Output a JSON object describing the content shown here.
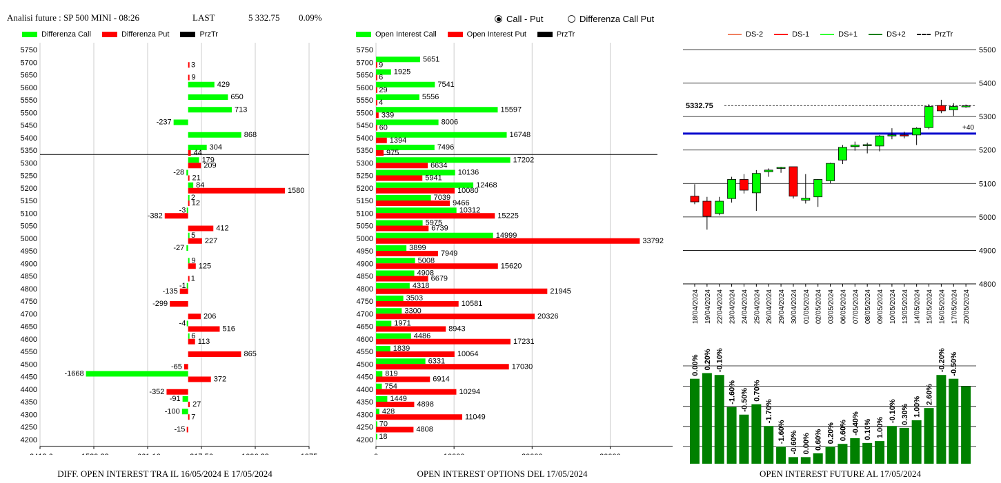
{
  "header": {
    "title": "Analisi future : SP 500 MINI - 08:26",
    "last_label": "LAST",
    "last_value": "5 332.75",
    "last_change": "0.09%"
  },
  "radios": [
    {
      "label": "Call - Put",
      "selected": true
    },
    {
      "label": "Differenza Call Put",
      "selected": false
    }
  ],
  "colors": {
    "green": "#00ff00",
    "red": "#ff0000",
    "black": "#000000",
    "darkgreen": "#008000",
    "blue": "#0000cc"
  },
  "legends": {
    "left": [
      {
        "label": "Differenza Call",
        "color": "#00ff00"
      },
      {
        "label": "Differenza Put",
        "color": "#ff0000"
      },
      {
        "label": "PrzTr",
        "color": "#000000"
      }
    ],
    "mid": [
      {
        "label": "Open Interest Call",
        "color": "#00ff00"
      },
      {
        "label": "Open Interest Put",
        "color": "#ff0000"
      },
      {
        "label": "PrzTr",
        "color": "#000000"
      }
    ],
    "right": [
      {
        "label": "DS-2",
        "color": "#f08060",
        "style": "solid"
      },
      {
        "label": "DS-1",
        "color": "#ff0000",
        "style": "solid"
      },
      {
        "label": "DS+1",
        "color": "#33ff33",
        "style": "solid"
      },
      {
        "label": "DS+2",
        "color": "#008000",
        "style": "solid"
      },
      {
        "label": "PrzTr",
        "color": "#000000",
        "style": "dashed"
      }
    ]
  },
  "captions": {
    "left": "DIFF. OPEN INTEREST TRA IL 16/05/2024 E 17/05/2024",
    "mid": "OPEN INTEREST OPTIONS DEL 17/05/2024",
    "right": "OPEN INTEREST FUTURE AL 17/05/2024"
  },
  "chart_data": [
    {
      "type": "bar",
      "orientation": "horizontal",
      "categories": [
        "5750",
        "5700",
        "5650",
        "5600",
        "5550",
        "5500",
        "5450",
        "5400",
        "5350",
        "5300",
        "5250",
        "5200",
        "5150",
        "5100",
        "5050",
        "5000",
        "4950",
        "4900",
        "4850",
        "4800",
        "4750",
        "4700",
        "4650",
        "4600",
        "4550",
        "4500",
        "4450",
        "4400",
        "4350",
        "4300",
        "4250",
        "4200"
      ],
      "series": [
        {
          "name": "Differenza Call",
          "values": [
            null,
            null,
            null,
            429,
            650,
            713,
            -237,
            868,
            304,
            179,
            -28,
            84,
            2,
            -3,
            null,
            5,
            -27,
            9,
            null,
            -1,
            null,
            null,
            -4,
            6,
            null,
            null,
            -1668,
            null,
            -91,
            -100,
            null,
            null
          ]
        },
        {
          "name": "Differenza Put",
          "values": [
            null,
            3,
            9,
            null,
            null,
            null,
            null,
            null,
            44,
            209,
            21,
            1580,
            12,
            -382,
            412,
            227,
            null,
            125,
            1,
            -135,
            -299,
            206,
            516,
            113,
            865,
            -65,
            372,
            -352,
            27,
            7,
            -15,
            null
          ]
        }
      ],
      "xticks": [
        "-2418.6",
        "-1539.88",
        "-661.16",
        "217.56",
        "1096.28",
        "1975"
      ],
      "xlim": [
        -2418.6,
        1975
      ],
      "reference_price": 5332.75
    },
    {
      "type": "bar",
      "orientation": "horizontal",
      "categories": [
        "5750",
        "5700",
        "5650",
        "5600",
        "5550",
        "5500",
        "5450",
        "5400",
        "5350",
        "5300",
        "5250",
        "5200",
        "5150",
        "5100",
        "5050",
        "5000",
        "4950",
        "4900",
        "4850",
        "4800",
        "4750",
        "4700",
        "4650",
        "4600",
        "4550",
        "4500",
        "4450",
        "4400",
        "4350",
        "4300",
        "4250",
        "4200"
      ],
      "series": [
        {
          "name": "Open Interest Call",
          "values": [
            null,
            5651,
            1925,
            7541,
            5556,
            15597,
            8006,
            16748,
            7496,
            17202,
            10136,
            12468,
            7039,
            10312,
            5975,
            14999,
            3899,
            5008,
            4908,
            4318,
            3503,
            3300,
            1971,
            4486,
            1839,
            6331,
            819,
            754,
            1449,
            428,
            70,
            18
          ]
        },
        {
          "name": "Open Interest Put",
          "values": [
            null,
            9,
            6,
            29,
            4,
            339,
            60,
            1394,
            975,
            6634,
            5941,
            10080,
            9466,
            15225,
            6739,
            33792,
            7949,
            15620,
            6679,
            21945,
            10581,
            20326,
            8943,
            17231,
            10064,
            17030,
            6914,
            10294,
            4898,
            11049,
            4808,
            null
          ]
        }
      ],
      "xticks": [
        "0",
        "10000",
        "20000",
        "30000"
      ],
      "xlim": [
        0,
        38000
      ],
      "reference_price": 5332.75
    },
    {
      "type": "candlestick",
      "dates": [
        "18/04/2024",
        "19/04/2024",
        "22/04/2024",
        "23/04/2024",
        "24/04/2024",
        "25/04/2024",
        "26/04/2024",
        "29/04/2024",
        "30/04/2024",
        "01/05/2024",
        "02/05/2024",
        "03/05/2024",
        "06/05/2024",
        "07/05/2024",
        "08/05/2024",
        "09/05/2024",
        "10/05/2024",
        "13/05/2024",
        "14/05/2024",
        "15/05/2024",
        "16/05/2024",
        "17/05/2024",
        "20/05/2024"
      ],
      "candles": [
        {
          "open": 5062,
          "high": 5098,
          "low": 5038,
          "close": 5045
        },
        {
          "open": 5047,
          "high": 5060,
          "low": 4962,
          "close": 5002
        },
        {
          "open": 5010,
          "high": 5060,
          "low": 5005,
          "close": 5047
        },
        {
          "open": 5055,
          "high": 5120,
          "low": 5043,
          "close": 5112
        },
        {
          "open": 5112,
          "high": 5128,
          "low": 5070,
          "close": 5080
        },
        {
          "open": 5072,
          "high": 5140,
          "low": 5018,
          "close": 5130
        },
        {
          "open": 5135,
          "high": 5145,
          "low": 5120,
          "close": 5140
        },
        {
          "open": 5147,
          "high": 5150,
          "low": 5132,
          "close": 5148
        },
        {
          "open": 5150,
          "high": 5150,
          "low": 5055,
          "close": 5062
        },
        {
          "open": 5050,
          "high": 5128,
          "low": 5040,
          "close": 5056
        },
        {
          "open": 5060,
          "high": 5113,
          "low": 5030,
          "close": 5112
        },
        {
          "open": 5108,
          "high": 5162,
          "low": 5100,
          "close": 5160
        },
        {
          "open": 5170,
          "high": 5215,
          "low": 5158,
          "close": 5208
        },
        {
          "open": 5210,
          "high": 5225,
          "low": 5198,
          "close": 5215
        },
        {
          "open": 5213,
          "high": 5222,
          "low": 5190,
          "close": 5216
        },
        {
          "open": 5212,
          "high": 5245,
          "low": 5196,
          "close": 5242
        },
        {
          "open": 5243,
          "high": 5265,
          "low": 5232,
          "close": 5245
        },
        {
          "open": 5245,
          "high": 5255,
          "low": 5235,
          "close": 5243
        },
        {
          "open": 5245,
          "high": 5268,
          "low": 5215,
          "close": 5265
        },
        {
          "open": 5267,
          "high": 5337,
          "low": 5262,
          "close": 5330
        },
        {
          "open": 5333,
          "high": 5350,
          "low": 5310,
          "close": 5317
        },
        {
          "open": 5320,
          "high": 5340,
          "low": 5302,
          "close": 5330
        },
        {
          "open": 5330,
          "high": 5336,
          "low": 5326,
          "close": 5332
        }
      ],
      "yticks": [
        "5500",
        "5400",
        "5300",
        "5200",
        "5100",
        "5000",
        "4900",
        "4800"
      ],
      "ylim": [
        4800,
        5500
      ],
      "last_price_label": "5332.75",
      "last_price": 5332.75,
      "level_line": 5249,
      "offset_label": "+40"
    },
    {
      "type": "bar",
      "categories": [
        "18/04/2024",
        "19/04/2024",
        "22/04/2024",
        "23/04/2024",
        "24/04/2024",
        "25/04/2024",
        "26/04/2024",
        "29/04/2024",
        "30/04/2024",
        "01/05/2024",
        "02/05/2024",
        "03/05/2024",
        "06/05/2024",
        "07/05/2024",
        "08/05/2024",
        "09/05/2024",
        "10/05/2024",
        "13/05/2024",
        "14/05/2024",
        "15/05/2024",
        "16/05/2024",
        "17/05/2024",
        "20/05/2024"
      ],
      "values": [
        0.9,
        0.96,
        0.94,
        0.6,
        0.52,
        0.63,
        0.4,
        0.18,
        0.07,
        0.07,
        0.11,
        0.18,
        0.21,
        0.27,
        0.22,
        0.24,
        0.4,
        0.38,
        0.46,
        0.59,
        0.94,
        0.9,
        0.82
      ],
      "labels": [
        "0.00%",
        "0.20%",
        "-0.10%",
        "-1.60%",
        "-0.50%",
        "0.70%",
        "-1.70%",
        "-1.60%",
        "-0.60%",
        "0.00%",
        "0.60%",
        "0.20%",
        "0.60%",
        "-0.40%",
        "0.10%",
        "1.00%",
        "-0.10%",
        "0.30%",
        "1.00%",
        "2.60%",
        "-0.20%",
        "-0.50%",
        ""
      ]
    }
  ]
}
